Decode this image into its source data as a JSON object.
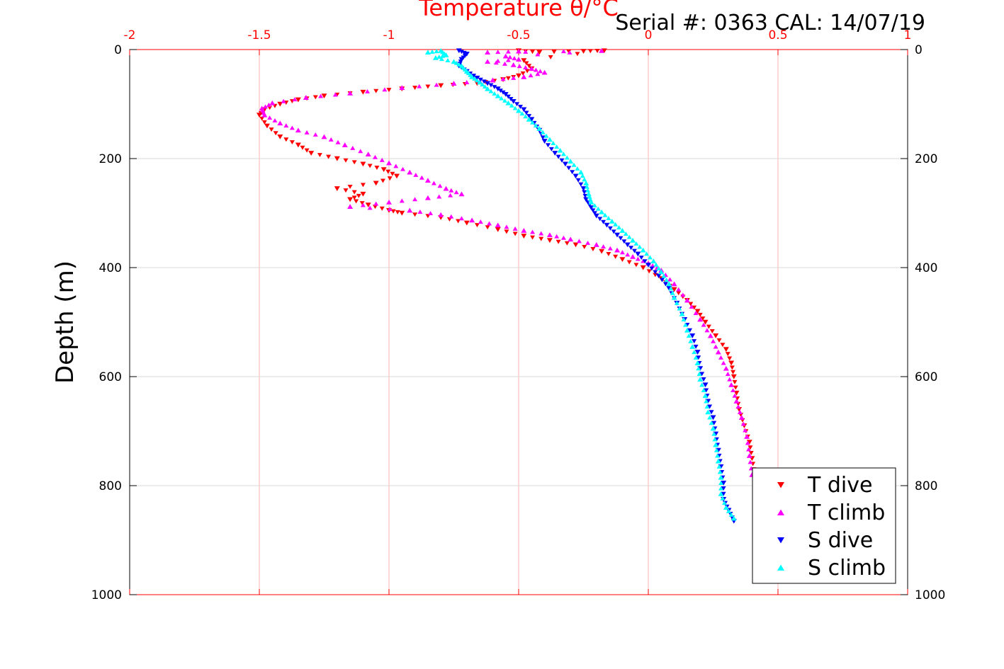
{
  "chart_data": {
    "type": "scatter",
    "xlabel": "Temperature θ/°C",
    "ylabel": "Depth (m)",
    "annotation": "Serial #: 0363  CAL: 14/07/19",
    "xlim": [
      -2,
      1
    ],
    "ylim": [
      0,
      1000
    ],
    "y_reversed": true,
    "grid": true,
    "x_axis_position": "top",
    "x_ticks": [
      "-2",
      "-1.5",
      "-1",
      "-0.5",
      "0",
      "0.5",
      "1"
    ],
    "y_ticks": [
      "0",
      "200",
      "400",
      "600",
      "800",
      "1000"
    ],
    "legend_position": "bottom-right",
    "colors": {
      "axis": "#ff0000",
      "grid_x": "#ffb0b0",
      "grid_y": "#d9d9d9"
    },
    "series": [
      {
        "name": "T dive",
        "color": "#ff0000",
        "marker": "triangle-down",
        "points": [
          [
            -0.5,
            2
          ],
          [
            -0.42,
            5
          ],
          [
            -0.25,
            3
          ],
          [
            -0.17,
            2
          ],
          [
            -0.48,
            20
          ],
          [
            -0.45,
            35
          ],
          [
            -0.5,
            48
          ],
          [
            -0.56,
            55
          ],
          [
            -0.66,
            62
          ],
          [
            -0.8,
            66
          ],
          [
            -0.95,
            72
          ],
          [
            -1.1,
            78
          ],
          [
            -1.25,
            85
          ],
          [
            -1.35,
            92
          ],
          [
            -1.42,
            100
          ],
          [
            -1.48,
            110
          ],
          [
            -1.5,
            120
          ],
          [
            -1.47,
            140
          ],
          [
            -1.42,
            160
          ],
          [
            -1.35,
            175
          ],
          [
            -1.3,
            190
          ],
          [
            -1.2,
            200
          ],
          [
            -1.1,
            210
          ],
          [
            -1.02,
            220
          ],
          [
            -0.97,
            232
          ],
          [
            -1.05,
            245
          ],
          [
            -1.2,
            255
          ],
          [
            -1.1,
            265
          ],
          [
            -1.15,
            275
          ],
          [
            -1.08,
            285
          ],
          [
            -1.0,
            295
          ],
          [
            -0.95,
            300
          ],
          [
            -0.8,
            308
          ],
          [
            -0.7,
            318
          ],
          [
            -0.58,
            330
          ],
          [
            -0.48,
            342
          ],
          [
            -0.38,
            350
          ],
          [
            -0.28,
            358
          ],
          [
            -0.18,
            370
          ],
          [
            -0.1,
            385
          ],
          [
            -0.02,
            400
          ],
          [
            0.05,
            420
          ],
          [
            0.1,
            440
          ],
          [
            0.15,
            460
          ],
          [
            0.19,
            480
          ],
          [
            0.22,
            500
          ],
          [
            0.26,
            525
          ],
          [
            0.3,
            550
          ],
          [
            0.32,
            575
          ],
          [
            0.33,
            600
          ],
          [
            0.34,
            630
          ],
          [
            0.35,
            660
          ],
          [
            0.37,
            690
          ],
          [
            0.39,
            720
          ],
          [
            0.4,
            750
          ],
          [
            0.41,
            780
          ]
        ]
      },
      {
        "name": "T climb",
        "color": "#ff00ff",
        "marker": "triangle-up",
        "points": [
          [
            -0.5,
            3
          ],
          [
            -0.62,
            5
          ],
          [
            -0.18,
            2
          ],
          [
            -0.55,
            12
          ],
          [
            -0.5,
            18
          ],
          [
            -0.62,
            22
          ],
          [
            -0.52,
            28
          ],
          [
            -0.45,
            35
          ],
          [
            -0.4,
            42
          ],
          [
            -0.48,
            50
          ],
          [
            -0.6,
            56
          ],
          [
            -0.75,
            62
          ],
          [
            -0.95,
            70
          ],
          [
            -1.15,
            80
          ],
          [
            -1.32,
            88
          ],
          [
            -1.45,
            98
          ],
          [
            -1.49,
            108
          ],
          [
            -1.48,
            120
          ],
          [
            -1.42,
            135
          ],
          [
            -1.35,
            148
          ],
          [
            -1.25,
            160
          ],
          [
            -1.17,
            175
          ],
          [
            -1.08,
            192
          ],
          [
            -1.0,
            208
          ],
          [
            -0.92,
            225
          ],
          [
            -0.85,
            240
          ],
          [
            -0.78,
            255
          ],
          [
            -0.72,
            265
          ],
          [
            -0.85,
            272
          ],
          [
            -1.0,
            280
          ],
          [
            -1.15,
            288
          ],
          [
            -0.92,
            295
          ],
          [
            -0.8,
            303
          ],
          [
            -0.68,
            313
          ],
          [
            -0.58,
            322
          ],
          [
            -0.48,
            332
          ],
          [
            -0.38,
            340
          ],
          [
            -0.3,
            348
          ],
          [
            -0.2,
            358
          ],
          [
            -0.12,
            368
          ],
          [
            -0.06,
            380
          ],
          [
            0.0,
            392
          ],
          [
            0.05,
            405
          ],
          [
            0.1,
            430
          ],
          [
            0.15,
            460
          ],
          [
            0.2,
            495
          ],
          [
            0.24,
            525
          ],
          [
            0.27,
            555
          ],
          [
            0.3,
            585
          ],
          [
            0.32,
            615
          ],
          [
            0.34,
            645
          ],
          [
            0.36,
            675
          ],
          [
            0.38,
            710
          ],
          [
            0.39,
            745
          ],
          [
            0.4,
            780
          ]
        ]
      },
      {
        "name": "S dive",
        "color": "#0000ff",
        "marker": "triangle-down",
        "points": [
          [
            -0.73,
            2
          ],
          [
            -0.7,
            8
          ],
          [
            -0.72,
            18
          ],
          [
            -0.73,
            30
          ],
          [
            -0.7,
            40
          ],
          [
            -0.66,
            52
          ],
          [
            -0.62,
            62
          ],
          [
            -0.58,
            72
          ],
          [
            -0.55,
            82
          ],
          [
            -0.52,
            95
          ],
          [
            -0.48,
            110
          ],
          [
            -0.45,
            128
          ],
          [
            -0.42,
            148
          ],
          [
            -0.4,
            168
          ],
          [
            -0.36,
            190
          ],
          [
            -0.32,
            210
          ],
          [
            -0.28,
            232
          ],
          [
            -0.25,
            255
          ],
          [
            -0.24,
            275
          ],
          [
            -0.22,
            290
          ],
          [
            -0.2,
            305
          ],
          [
            -0.16,
            322
          ],
          [
            -0.12,
            340
          ],
          [
            -0.08,
            358
          ],
          [
            -0.04,
            375
          ],
          [
            0.0,
            395
          ],
          [
            0.04,
            415
          ],
          [
            0.08,
            438
          ],
          [
            0.11,
            465
          ],
          [
            0.14,
            495
          ],
          [
            0.17,
            525
          ],
          [
            0.19,
            555
          ],
          [
            0.2,
            585
          ],
          [
            0.22,
            615
          ],
          [
            0.23,
            645
          ],
          [
            0.25,
            675
          ],
          [
            0.26,
            705
          ],
          [
            0.27,
            735
          ],
          [
            0.28,
            765
          ],
          [
            0.29,
            795
          ],
          [
            0.29,
            825
          ],
          [
            0.31,
            845
          ],
          [
            0.33,
            865
          ]
        ]
      },
      {
        "name": "S climb",
        "color": "#00ffff",
        "marker": "triangle-up",
        "points": [
          [
            -0.85,
            5
          ],
          [
            -0.8,
            2
          ],
          [
            -0.78,
            10
          ],
          [
            -0.82,
            15
          ],
          [
            -0.75,
            22
          ],
          [
            -0.72,
            30
          ],
          [
            -0.7,
            40
          ],
          [
            -0.68,
            50
          ],
          [
            -0.65,
            60
          ],
          [
            -0.62,
            72
          ],
          [
            -0.58,
            85
          ],
          [
            -0.54,
            98
          ],
          [
            -0.5,
            112
          ],
          [
            -0.46,
            128
          ],
          [
            -0.42,
            145
          ],
          [
            -0.38,
            165
          ],
          [
            -0.34,
            185
          ],
          [
            -0.3,
            205
          ],
          [
            -0.26,
            225
          ],
          [
            -0.24,
            245
          ],
          [
            -0.23,
            265
          ],
          [
            -0.22,
            280
          ],
          [
            -0.18,
            298
          ],
          [
            -0.14,
            315
          ],
          [
            -0.1,
            332
          ],
          [
            -0.06,
            350
          ],
          [
            -0.02,
            368
          ],
          [
            0.02,
            388
          ],
          [
            0.05,
            408
          ],
          [
            0.08,
            430
          ],
          [
            0.1,
            455
          ],
          [
            0.13,
            485
          ],
          [
            0.15,
            515
          ],
          [
            0.17,
            545
          ],
          [
            0.19,
            575
          ],
          [
            0.2,
            605
          ],
          [
            0.22,
            635
          ],
          [
            0.23,
            665
          ],
          [
            0.25,
            695
          ],
          [
            0.26,
            725
          ],
          [
            0.27,
            755
          ],
          [
            0.28,
            785
          ],
          [
            0.28,
            815
          ],
          [
            0.3,
            840
          ],
          [
            0.33,
            860
          ]
        ]
      }
    ]
  }
}
